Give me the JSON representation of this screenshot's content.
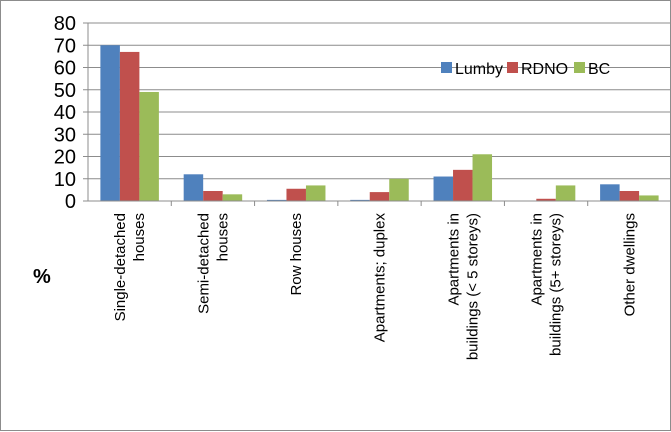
{
  "chart_data": {
    "type": "bar",
    "ylabel": "%",
    "ylim": [
      0,
      80
    ],
    "yticks": [
      0,
      10,
      20,
      30,
      40,
      50,
      60,
      70,
      80
    ],
    "grid": true,
    "legend_position": "top-right",
    "categories": [
      [
        "Single-detached",
        "houses"
      ],
      [
        "Semi-detached",
        "houses"
      ],
      [
        "Row houses"
      ],
      [
        "Apartments; duplex"
      ],
      [
        "Apartments in",
        "buildings (< 5 storeys)"
      ],
      [
        "Apartments in",
        "buildings (5+ storeys)"
      ],
      [
        "Other dwellings"
      ]
    ],
    "series": [
      {
        "name": "Lumby",
        "color": "#4f81bd",
        "values": [
          70,
          12,
          0.5,
          0.5,
          11,
          0,
          7.5
        ]
      },
      {
        "name": "RDNO",
        "color": "#c0504d",
        "values": [
          67,
          4.5,
          5.5,
          4,
          14,
          1,
          4.5
        ]
      },
      {
        "name": "BC",
        "color": "#9bbb59",
        "values": [
          49,
          3,
          7,
          10,
          21,
          7,
          2.5
        ]
      }
    ]
  }
}
